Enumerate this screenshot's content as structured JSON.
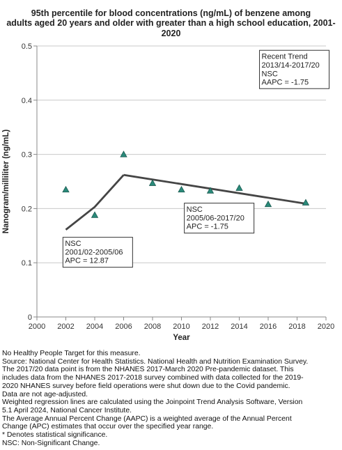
{
  "title_line1": "95th percentile for blood concentrations (ng/mL) of benzene among",
  "title_line2": "adults aged 20 years and older with greater than a high school education, 2001-2020",
  "chart_data": {
    "type": "scatter",
    "title": "95th percentile for blood concentrations (ng/mL) of benzene among adults aged 20 years and older with greater than a high school education, 2001-2020",
    "xlabel": "Year",
    "ylabel": "Nanogram/milliliter (ng/mL)",
    "xlim": [
      2000,
      2020
    ],
    "ylim": [
      0,
      0.5
    ],
    "xticks": [
      "2000",
      "2002",
      "2004",
      "2006",
      "2008",
      "2010",
      "2012",
      "2014",
      "2016",
      "2018",
      "2020"
    ],
    "yticks": [
      "0",
      "0.1",
      "0.2",
      "0.3",
      "0.4",
      "0.5"
    ],
    "grid": "horizontal",
    "points": [
      {
        "x": 2002,
        "y": 0.235
      },
      {
        "x": 2004,
        "y": 0.188
      },
      {
        "x": 2006,
        "y": 0.3
      },
      {
        "x": 2008,
        "y": 0.247
      },
      {
        "x": 2010,
        "y": 0.235
      },
      {
        "x": 2012,
        "y": 0.233
      },
      {
        "x": 2014,
        "y": 0.238
      },
      {
        "x": 2016,
        "y": 0.208
      },
      {
        "x": 2018.6,
        "y": 0.211
      }
    ],
    "trend_segments": [
      {
        "x": [
          2002,
          2004,
          2006
        ],
        "y": [
          0.161,
          0.203,
          0.262
        ]
      },
      {
        "x": [
          2006,
          2018.6
        ],
        "y": [
          0.262,
          0.209
        ]
      }
    ],
    "annotations": [
      {
        "lines": [
          "NSC",
          "2001/02-2005/06",
          "APC = 12.87"
        ],
        "x": 2001.8,
        "y": 0.147
      },
      {
        "lines": [
          "NSC",
          "2005/06-2017/20",
          "APC = -1.75"
        ],
        "x": 2010.2,
        "y": 0.21
      },
      {
        "lines": [
          "Recent Trend",
          "2013/14-2017/20",
          "NSC",
          "AAPC = -1.75"
        ],
        "x": 2015.4,
        "y": 0.492
      }
    ],
    "colors": {
      "marker": "#2a8a7a",
      "marker_edge": "#1b5a50",
      "trend": "#454545",
      "grid": "#c8c8c8"
    }
  },
  "notes": [
    "No Healthy People Target for this measure.",
    "Source: National Center for Health Statistics. National Health and Nutrition Examination Survey.",
    "The 2017/20 data point is from the NHANES 2017-March 2020 Pre-pandemic dataset. This",
    "includes data from the NHANES 2017-2018 survey combined with data collected for the 2019-",
    "2020 NHANES survey before field operations were shut down due to the Covid pandemic.",
    "Data are not age-adjusted.",
    "Weighted regression lines are calculated using the Joinpoint Trend Analysis Software, Version",
    "5.1 April 2024, National Cancer Institute.",
    "The Average Annual Percent Change (AAPC) is a weighted average of the Annual Percent",
    "Change (APC) estimates that occur over the specified year range.",
    "* Denotes statistical significance.",
    "NSC: Non-Significant Change."
  ]
}
